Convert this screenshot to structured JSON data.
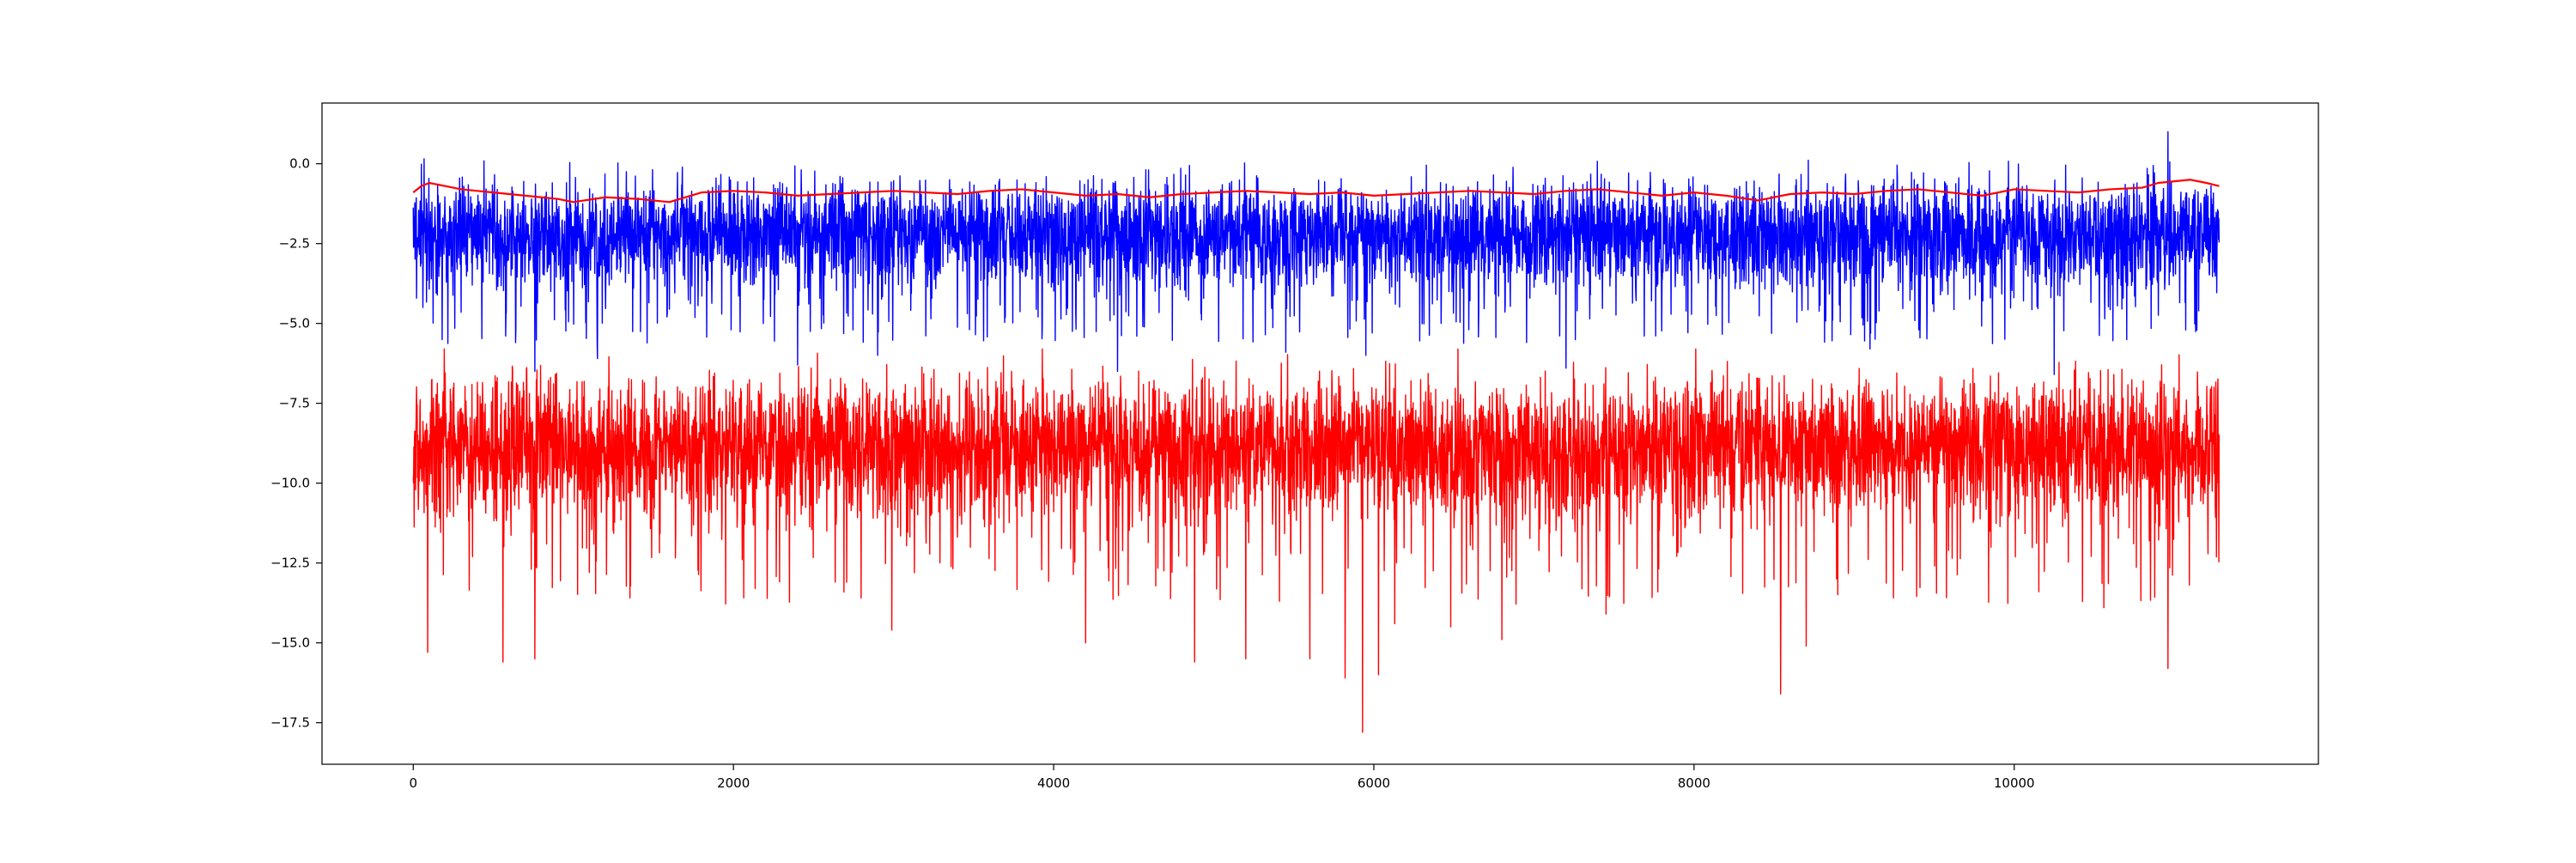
{
  "chart_data": {
    "type": "line",
    "title": "",
    "xlabel": "",
    "ylabel": "",
    "xlim": [
      -570,
      11900
    ],
    "ylim": [
      -18.8,
      1.9
    ],
    "x_ticks": [
      0,
      2000,
      4000,
      6000,
      8000,
      10000
    ],
    "x_tick_labels": [
      "0",
      "2000",
      "4000",
      "6000",
      "8000",
      "10000"
    ],
    "y_ticks": [
      0.0,
      -2.5,
      -5.0,
      -7.5,
      -10.0,
      -12.5,
      -15.0,
      -17.5
    ],
    "y_tick_labels": [
      "0.0",
      "−2.5",
      "−5.0",
      "−7.5",
      "−10.0",
      "−12.5",
      "−15.0",
      "−17.5"
    ],
    "grid": false,
    "legend": "none",
    "series": [
      {
        "color": "#0000ff",
        "style": "dense noisy line",
        "x_range": [
          0,
          11280
        ],
        "typical_band": [
          -3.7,
          -0.6
        ],
        "max": 1.0,
        "max_at_x": 10960,
        "min": -6.6,
        "dips": [
          {
            "x": 60,
            "y": -4.5
          },
          {
            "x": 640,
            "y": -5.6
          },
          {
            "x": 760,
            "y": -6.5
          },
          {
            "x": 1150,
            "y": -6.1
          },
          {
            "x": 2400,
            "y": -6.3
          },
          {
            "x": 2900,
            "y": -6.0
          },
          {
            "x": 4400,
            "y": -6.5
          },
          {
            "x": 5450,
            "y": -5.9
          },
          {
            "x": 5950,
            "y": -6.0
          },
          {
            "x": 7200,
            "y": -6.4
          },
          {
            "x": 9100,
            "y": -5.8
          },
          {
            "x": 10250,
            "y": -6.6
          }
        ]
      },
      {
        "color": "#ff0000",
        "style": "dense noisy line",
        "x_range": [
          0,
          11280
        ],
        "typical_band": [
          -10.8,
          -6.8
        ],
        "max": -5.8,
        "max_at_x": 3930,
        "min": -17.8,
        "min_at_x": 5930,
        "dips": [
          {
            "x": 90,
            "y": -15.3
          },
          {
            "x": 560,
            "y": -15.6
          },
          {
            "x": 760,
            "y": -15.5
          },
          {
            "x": 2990,
            "y": -14.6
          },
          {
            "x": 4200,
            "y": -15.0
          },
          {
            "x": 4880,
            "y": -15.6
          },
          {
            "x": 5200,
            "y": -15.5
          },
          {
            "x": 5600,
            "y": -15.5
          },
          {
            "x": 5820,
            "y": -16.1
          },
          {
            "x": 5930,
            "y": -17.8
          },
          {
            "x": 6030,
            "y": -16.0
          },
          {
            "x": 6130,
            "y": -14.4
          },
          {
            "x": 6480,
            "y": -14.5
          },
          {
            "x": 6800,
            "y": -14.9
          },
          {
            "x": 7450,
            "y": -14.1
          },
          {
            "x": 8540,
            "y": -16.6
          },
          {
            "x": 8700,
            "y": -15.1
          },
          {
            "x": 10560,
            "y": -13.9
          },
          {
            "x": 10960,
            "y": -15.8
          }
        ]
      },
      {
        "color": "#ff0000",
        "style": "smooth moving average",
        "x": [
          0,
          50,
          100,
          150,
          200,
          300,
          400,
          500,
          600,
          700,
          800,
          900,
          1000,
          1200,
          1400,
          1600,
          1800,
          2000,
          2200,
          2400,
          2600,
          2800,
          3000,
          3200,
          3400,
          3600,
          3800,
          4000,
          4200,
          4400,
          4600,
          4800,
          5000,
          5200,
          5400,
          5600,
          5800,
          6000,
          6200,
          6400,
          6600,
          6800,
          7000,
          7200,
          7400,
          7600,
          7800,
          8000,
          8200,
          8400,
          8600,
          8800,
          9000,
          9200,
          9400,
          9600,
          9800,
          10000,
          10200,
          10400,
          10600,
          10800,
          10900,
          11000,
          11100,
          11200,
          11280
        ],
        "y": [
          -0.9,
          -0.7,
          -0.6,
          -0.65,
          -0.7,
          -0.8,
          -0.85,
          -0.9,
          -0.95,
          -1.0,
          -1.05,
          -1.1,
          -1.2,
          -1.05,
          -1.1,
          -1.2,
          -0.9,
          -0.85,
          -0.9,
          -1.0,
          -0.95,
          -0.9,
          -0.85,
          -0.9,
          -0.95,
          -0.85,
          -0.8,
          -0.9,
          -1.0,
          -0.95,
          -1.05,
          -0.95,
          -0.9,
          -0.85,
          -0.9,
          -0.95,
          -0.9,
          -1.0,
          -0.95,
          -0.9,
          -0.85,
          -0.9,
          -0.95,
          -0.85,
          -0.8,
          -0.9,
          -1.0,
          -0.9,
          -1.0,
          -1.15,
          -0.95,
          -0.9,
          -0.95,
          -0.85,
          -0.8,
          -0.9,
          -1.0,
          -0.8,
          -0.85,
          -0.9,
          -0.8,
          -0.75,
          -0.6,
          -0.55,
          -0.5,
          -0.6,
          -0.7
        ]
      }
    ]
  }
}
